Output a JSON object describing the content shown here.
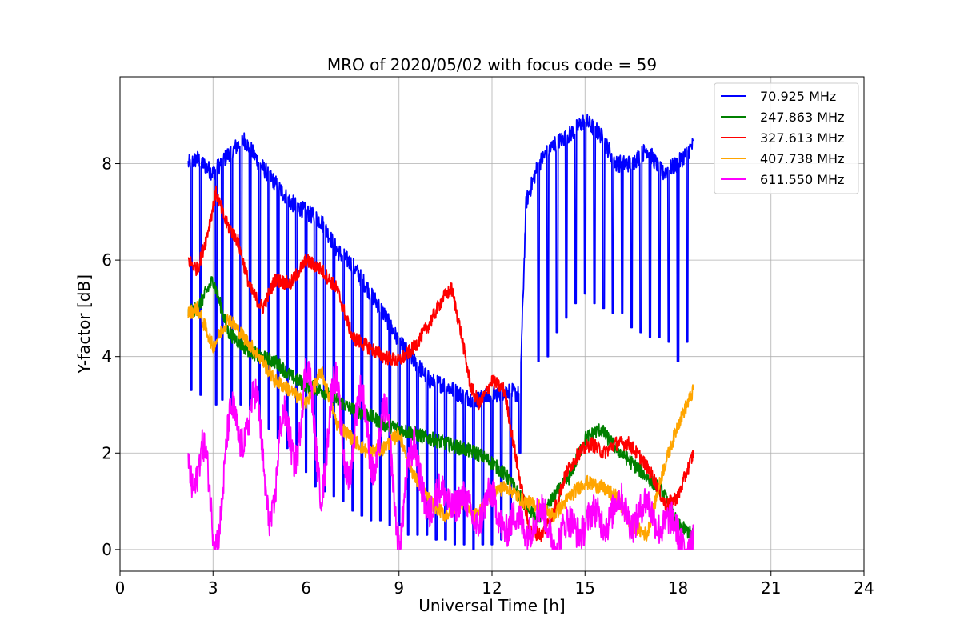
{
  "chart_data": {
    "type": "line",
    "title": "MRO of 2020/05/02 with focus code = 59",
    "xlabel": "Universal Time [h]",
    "ylabel": "Y-factor [dB]",
    "xlim": [
      0,
      24
    ],
    "ylim": [
      -0.45,
      9.8
    ],
    "xticks": [
      0,
      3,
      6,
      9,
      12,
      15,
      18,
      21,
      24
    ],
    "yticks": [
      0,
      2,
      4,
      6,
      8
    ],
    "grid": true,
    "legend_position": "top-right",
    "series": [
      {
        "name": " 70.925 MHz",
        "color": "#0000ff",
        "x": [
          2.2,
          2.5,
          3.0,
          3.5,
          4.0,
          4.5,
          5.0,
          5.5,
          6.0,
          6.5,
          7.0,
          7.5,
          8.0,
          8.5,
          9.0,
          9.5,
          10.0,
          10.5,
          11.0,
          11.5,
          12.0,
          12.5,
          12.9,
          13.1,
          13.5,
          14.0,
          14.5,
          15.0,
          15.5,
          16.0,
          16.5,
          17.0,
          17.5,
          18.0,
          18.5
        ],
        "values": [
          8.0,
          8.1,
          7.8,
          8.2,
          8.5,
          8.0,
          7.6,
          7.2,
          7.0,
          6.8,
          6.2,
          5.9,
          5.4,
          4.9,
          4.3,
          3.9,
          3.5,
          3.4,
          3.2,
          3.1,
          3.2,
          3.3,
          3.2,
          7.2,
          8.0,
          8.4,
          8.6,
          8.9,
          8.6,
          8.0,
          8.0,
          8.3,
          7.8,
          8.0,
          8.4
        ],
        "dropouts": [
          2.3,
          2.6,
          3.1,
          3.3,
          3.6,
          3.9,
          4.2,
          4.5,
          4.8,
          5.1,
          5.4,
          5.7,
          6.0,
          6.3,
          6.6,
          6.9,
          7.2,
          7.5,
          7.8,
          8.1,
          8.4,
          8.7,
          9.0,
          9.3,
          9.6,
          9.9,
          10.2,
          10.5,
          10.8,
          11.1,
          11.4,
          11.7,
          12.0,
          12.3,
          12.6,
          12.9,
          13.5,
          13.8,
          14.1,
          14.4,
          14.7,
          15.0,
          15.3,
          15.6,
          15.9,
          16.2,
          16.5,
          16.8,
          17.1,
          17.4,
          17.7,
          18.0,
          18.3
        ],
        "dropout_values": [
          3.3,
          3.2,
          3.0,
          3.1,
          3.0,
          3.0,
          2.9,
          2.7,
          2.5,
          2.3,
          2.1,
          2.0,
          1.6,
          1.3,
          1.2,
          1.1,
          1.0,
          0.8,
          0.7,
          0.6,
          0.6,
          0.5,
          0.5,
          0.3,
          0.3,
          0.3,
          0.2,
          0.2,
          0.1,
          0.1,
          0.0,
          0.1,
          0.1,
          0.2,
          0.3,
          2.0,
          3.9,
          4.0,
          4.5,
          4.8,
          5.1,
          5.3,
          5.1,
          5.0,
          4.9,
          4.9,
          4.6,
          4.5,
          4.4,
          4.4,
          4.3,
          3.9,
          4.3
        ]
      },
      {
        "name": "247.863 MHz",
        "color": "#008000",
        "x": [
          2.2,
          2.5,
          3.0,
          3.5,
          4.0,
          4.5,
          5.0,
          5.5,
          6.0,
          6.5,
          7.0,
          7.5,
          8.0,
          8.5,
          9.0,
          9.5,
          10.0,
          10.5,
          11.0,
          11.5,
          12.0,
          12.5,
          13.0,
          13.5,
          14.0,
          14.5,
          15.0,
          15.5,
          16.0,
          16.5,
          17.0,
          17.5,
          18.0,
          18.5
        ],
        "values": [
          4.9,
          5.0,
          5.6,
          4.5,
          4.2,
          4.0,
          3.9,
          3.6,
          3.4,
          3.3,
          3.1,
          2.9,
          2.8,
          2.6,
          2.5,
          2.4,
          2.3,
          2.2,
          2.1,
          2.0,
          1.8,
          1.5,
          1.0,
          0.6,
          1.1,
          1.5,
          2.3,
          2.5,
          2.1,
          1.8,
          1.5,
          1.2,
          0.5,
          0.3
        ]
      },
      {
        "name": "327.613 MHz",
        "color": "#ff0000",
        "x": [
          2.2,
          2.5,
          2.8,
          3.1,
          3.4,
          3.8,
          4.2,
          4.6,
          5.0,
          5.5,
          6.0,
          6.5,
          7.0,
          7.5,
          8.0,
          8.5,
          9.0,
          9.5,
          10.0,
          10.4,
          10.7,
          11.0,
          11.3,
          11.6,
          12.0,
          12.4,
          12.8,
          13.2,
          13.6,
          14.0,
          14.4,
          14.8,
          15.2,
          15.6,
          16.0,
          16.4,
          16.8,
          17.2,
          17.6,
          18.0,
          18.5
        ],
        "values": [
          6.0,
          5.8,
          6.5,
          7.4,
          6.8,
          6.4,
          5.4,
          5.0,
          5.6,
          5.5,
          6.0,
          5.8,
          5.4,
          4.4,
          4.2,
          4.0,
          3.9,
          4.2,
          4.7,
          5.2,
          5.4,
          4.5,
          3.4,
          3.0,
          3.5,
          3.3,
          1.8,
          0.4,
          0.3,
          0.8,
          1.6,
          2.0,
          2.2,
          2.0,
          2.2,
          2.2,
          1.9,
          1.5,
          0.9,
          1.1,
          2.0
        ]
      },
      {
        "name": "407.738 MHz",
        "color": "#ffa500",
        "x": [
          2.2,
          2.5,
          3.0,
          3.5,
          4.0,
          4.5,
          5.0,
          5.5,
          6.0,
          6.5,
          7.0,
          7.5,
          8.0,
          8.5,
          9.0,
          9.5,
          10.0,
          10.5,
          11.0,
          11.5,
          12.0,
          12.5,
          13.0,
          13.5,
          14.0,
          14.5,
          15.0,
          15.5,
          16.0,
          16.5,
          17.0,
          17.5,
          18.0,
          18.5
        ],
        "values": [
          4.9,
          5.0,
          4.2,
          4.8,
          4.4,
          4.0,
          3.5,
          3.3,
          3.0,
          3.7,
          2.6,
          2.3,
          2.0,
          2.1,
          2.4,
          1.5,
          1.0,
          0.7,
          1.0,
          0.7,
          1.2,
          1.3,
          1.0,
          0.9,
          0.7,
          1.1,
          1.4,
          1.3,
          1.1,
          0.5,
          0.3,
          1.6,
          2.6,
          3.3
        ]
      },
      {
        "name": "611.550 MHz",
        "color": "#ff00ff",
        "x": [
          2.2,
          2.5,
          3.0,
          3.5,
          4.0,
          4.5,
          5.0,
          5.5,
          6.0,
          6.5,
          7.0,
          7.5,
          8.0,
          8.5,
          9.0,
          9.5,
          10.0,
          10.5,
          11.0,
          11.5,
          12.0,
          12.5,
          13.0,
          13.5,
          14.0,
          14.5,
          15.0,
          15.5,
          16.0,
          16.5,
          17.0,
          17.5,
          18.0,
          18.5
        ],
        "values": [
          2.6,
          1.6,
          0.8,
          1.8,
          3.2,
          2.1,
          1.2,
          2.6,
          3.0,
          2.0,
          2.8,
          2.2,
          2.6,
          2.2,
          1.0,
          2.0,
          0.8,
          1.2,
          0.9,
          0.7,
          1.0,
          0.5,
          0.5,
          0.7,
          0.3,
          0.4,
          0.6,
          0.6,
          0.9,
          0.7,
          0.8,
          0.6,
          0.3,
          0.2
        ]
      }
    ]
  }
}
